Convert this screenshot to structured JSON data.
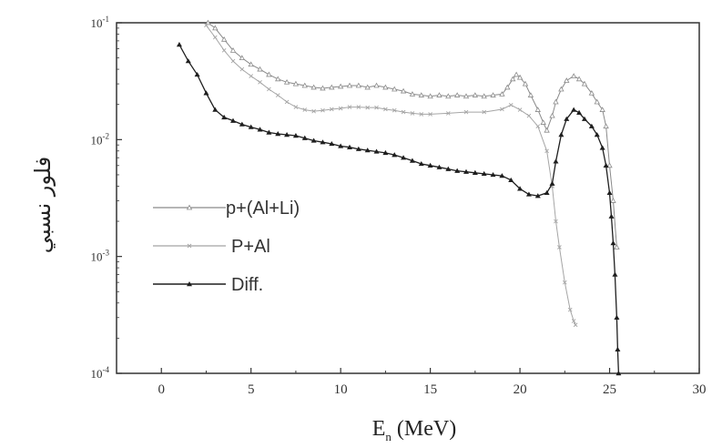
{
  "chart_data": {
    "type": "line",
    "title": "",
    "xlabel": {
      "main": "E",
      "sub": "n",
      "rest": " (MeV)"
    },
    "ylabel": "فلور نسبي",
    "xlim": [
      -2.5,
      30
    ],
    "ylim": [
      0.0001,
      0.1
    ],
    "yscale": "log",
    "grid": false,
    "legend_position": "left-center",
    "xticks": [
      0,
      5,
      10,
      15,
      20,
      25,
      30
    ],
    "xtick_labels": [
      "0",
      "5",
      "10",
      "15",
      "20",
      "25",
      "30"
    ],
    "yticks": [
      0.0001,
      0.001,
      0.01,
      0.1
    ],
    "ytick_labels": [
      {
        "base": "10",
        "exp": "-4"
      },
      {
        "base": "10",
        "exp": "-3"
      },
      {
        "base": "10",
        "exp": "-2"
      },
      {
        "base": "10",
        "exp": "-1"
      }
    ],
    "series": [
      {
        "name": "p+(Al+Li)",
        "color": "#8a8a8a",
        "marker": "open-triangle",
        "points": [
          [
            2.6,
            0.1
          ],
          [
            3,
            0.09
          ],
          [
            3.5,
            0.072
          ],
          [
            4,
            0.058
          ],
          [
            4.5,
            0.05
          ],
          [
            5,
            0.044
          ],
          [
            5.5,
            0.04
          ],
          [
            6,
            0.036
          ],
          [
            6.5,
            0.033
          ],
          [
            7,
            0.031
          ],
          [
            7.5,
            0.03
          ],
          [
            8,
            0.029
          ],
          [
            8.5,
            0.028
          ],
          [
            9,
            0.0275
          ],
          [
            9.5,
            0.028
          ],
          [
            10,
            0.0285
          ],
          [
            10.5,
            0.029
          ],
          [
            11,
            0.029
          ],
          [
            11.5,
            0.028
          ],
          [
            12,
            0.029
          ],
          [
            12.5,
            0.028
          ],
          [
            13,
            0.027
          ],
          [
            13.5,
            0.026
          ],
          [
            14,
            0.0245
          ],
          [
            14.5,
            0.024
          ],
          [
            15,
            0.0235
          ],
          [
            15.5,
            0.024
          ],
          [
            16,
            0.0235
          ],
          [
            16.5,
            0.024
          ],
          [
            17,
            0.0235
          ],
          [
            17.5,
            0.024
          ],
          [
            18,
            0.0235
          ],
          [
            18.5,
            0.024
          ],
          [
            19,
            0.0245
          ],
          [
            19.3,
            0.028
          ],
          [
            19.6,
            0.033
          ],
          [
            19.8,
            0.036
          ],
          [
            20,
            0.034
          ],
          [
            20.3,
            0.03
          ],
          [
            20.6,
            0.024
          ],
          [
            21,
            0.018
          ],
          [
            21.3,
            0.014
          ],
          [
            21.5,
            0.012
          ],
          [
            21.8,
            0.016
          ],
          [
            22,
            0.021
          ],
          [
            22.3,
            0.027
          ],
          [
            22.6,
            0.032
          ],
          [
            23,
            0.035
          ],
          [
            23.3,
            0.033
          ],
          [
            23.6,
            0.03
          ],
          [
            24,
            0.025
          ],
          [
            24.3,
            0.021
          ],
          [
            24.6,
            0.018
          ],
          [
            24.8,
            0.013
          ],
          [
            25,
            0.006
          ],
          [
            25.2,
            0.003
          ],
          [
            25.4,
            0.0012
          ]
        ]
      },
      {
        "name": "P+Al",
        "color": "#a5a5a5",
        "marker": "x",
        "points": [
          [
            2.5,
            0.095
          ],
          [
            3,
            0.075
          ],
          [
            3.5,
            0.058
          ],
          [
            4,
            0.047
          ],
          [
            4.5,
            0.04
          ],
          [
            5,
            0.035
          ],
          [
            5.5,
            0.031
          ],
          [
            6,
            0.027
          ],
          [
            6.5,
            0.024
          ],
          [
            7,
            0.021
          ],
          [
            7.5,
            0.019
          ],
          [
            8,
            0.018
          ],
          [
            8.5,
            0.0175
          ],
          [
            9,
            0.0178
          ],
          [
            9.5,
            0.0182
          ],
          [
            10,
            0.0185
          ],
          [
            10.5,
            0.019
          ],
          [
            11,
            0.019
          ],
          [
            11.5,
            0.0188
          ],
          [
            12,
            0.0188
          ],
          [
            12.5,
            0.0182
          ],
          [
            13,
            0.0178
          ],
          [
            13.5,
            0.0172
          ],
          [
            14,
            0.0168
          ],
          [
            14.5,
            0.0165
          ],
          [
            15,
            0.0165
          ],
          [
            16,
            0.0168
          ],
          [
            17,
            0.0172
          ],
          [
            18,
            0.0172
          ],
          [
            19,
            0.0182
          ],
          [
            19.5,
            0.0198
          ],
          [
            20,
            0.018
          ],
          [
            20.5,
            0.016
          ],
          [
            21,
            0.013
          ],
          [
            21.5,
            0.008
          ],
          [
            21.8,
            0.004
          ],
          [
            22,
            0.002
          ],
          [
            22.2,
            0.0012
          ],
          [
            22.5,
            0.0006
          ],
          [
            22.8,
            0.00035
          ],
          [
            23,
            0.00028
          ],
          [
            23.1,
            0.00026
          ]
        ]
      },
      {
        "name": "Diff.",
        "color": "#1e1e1e",
        "marker": "filled-triangle",
        "points": [
          [
            1,
            0.065
          ],
          [
            1.5,
            0.047
          ],
          [
            2,
            0.036
          ],
          [
            2.5,
            0.025
          ],
          [
            3,
            0.018
          ],
          [
            3.5,
            0.0155
          ],
          [
            4,
            0.0145
          ],
          [
            4.5,
            0.0135
          ],
          [
            5,
            0.0128
          ],
          [
            5.5,
            0.0122
          ],
          [
            6,
            0.0115
          ],
          [
            6.5,
            0.0112
          ],
          [
            7,
            0.011
          ],
          [
            7.5,
            0.0108
          ],
          [
            8,
            0.0103
          ],
          [
            8.5,
            0.0098
          ],
          [
            9,
            0.0095
          ],
          [
            9.5,
            0.0092
          ],
          [
            10,
            0.0088
          ],
          [
            10.5,
            0.0086
          ],
          [
            11,
            0.0083
          ],
          [
            11.5,
            0.0081
          ],
          [
            12,
            0.0079
          ],
          [
            12.5,
            0.0077
          ],
          [
            13,
            0.0074
          ],
          [
            13.5,
            0.007
          ],
          [
            14,
            0.0066
          ],
          [
            14.5,
            0.0062
          ],
          [
            15,
            0.006
          ],
          [
            15.5,
            0.0058
          ],
          [
            16,
            0.0056
          ],
          [
            16.5,
            0.0054
          ],
          [
            17,
            0.0053
          ],
          [
            17.5,
            0.0052
          ],
          [
            18,
            0.0051
          ],
          [
            18.5,
            0.005
          ],
          [
            19,
            0.0049
          ],
          [
            19.5,
            0.0045
          ],
          [
            20,
            0.0038
          ],
          [
            20.5,
            0.0034
          ],
          [
            21,
            0.0033
          ],
          [
            21.5,
            0.0035
          ],
          [
            21.8,
            0.0042
          ],
          [
            22,
            0.0065
          ],
          [
            22.3,
            0.011
          ],
          [
            22.6,
            0.015
          ],
          [
            23,
            0.018
          ],
          [
            23.3,
            0.017
          ],
          [
            23.6,
            0.015
          ],
          [
            24,
            0.013
          ],
          [
            24.3,
            0.011
          ],
          [
            24.6,
            0.0085
          ],
          [
            24.8,
            0.006
          ],
          [
            25,
            0.0035
          ],
          [
            25.1,
            0.0022
          ],
          [
            25.2,
            0.0013
          ],
          [
            25.3,
            0.0007
          ],
          [
            25.4,
            0.0003
          ],
          [
            25.45,
            0.00016
          ],
          [
            25.5,
            0.0001
          ]
        ]
      }
    ]
  }
}
